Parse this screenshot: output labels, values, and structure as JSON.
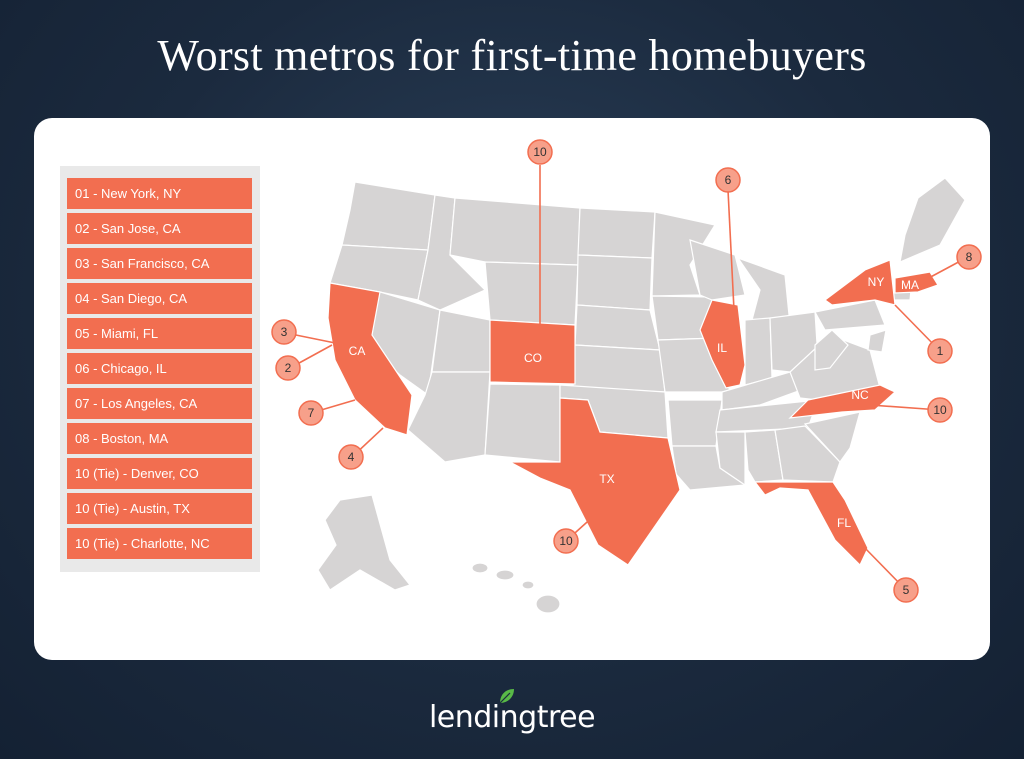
{
  "title": "Worst metros for first-time homebuyers",
  "ranking_list": [
    "01 - New York, NY",
    "02 - San Jose, CA",
    "03 - San Francisco, CA",
    "04 - San Diego, CA",
    "05 - Miami, FL",
    "06 - Chicago, IL",
    "07 - Los Angeles, CA",
    "08 - Boston, MA",
    "10 (Tie) - Denver, CO",
    "10 (Tie) - Austin, TX",
    "10 (Tie) - Charlotte, NC"
  ],
  "state_labels": {
    "ca": "CA",
    "co": "CO",
    "il": "IL",
    "tx": "TX",
    "fl": "FL",
    "nc": "NC",
    "ny": "NY",
    "ma": "MA"
  },
  "markers": {
    "co": "10",
    "il": "6",
    "ma": "8",
    "ny": "1",
    "nc": "10",
    "ca_sf": "3",
    "ca_sj": "2",
    "ca_la": "7",
    "ca_sd": "4",
    "tx": "10",
    "fl": "5"
  },
  "colors": {
    "highlight": "#f26e50",
    "marker_fill": "#f7a08a",
    "state_base": "#d6d4d4",
    "background": "#1b2a3e"
  },
  "logo_text": "lendingtree"
}
